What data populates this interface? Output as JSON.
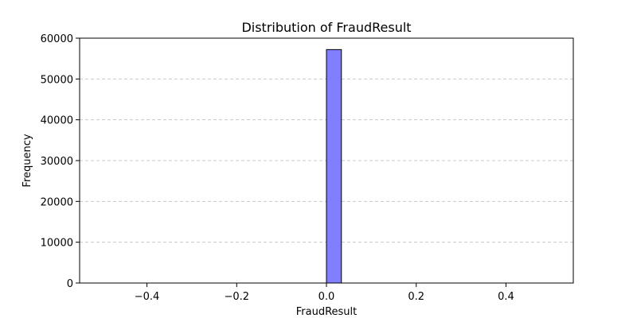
{
  "chart_data": {
    "type": "bar",
    "title": "Distribution of FraudResult",
    "xlabel": "FraudResult",
    "ylabel": "Frequency",
    "xlim": [
      -0.55,
      0.55
    ],
    "ylim": [
      0,
      60000
    ],
    "x_ticks": [
      -0.4,
      -0.2,
      0.0,
      0.2,
      0.4
    ],
    "x_tick_labels": [
      "−0.4",
      "−0.2",
      "0.0",
      "0.2",
      "0.4"
    ],
    "y_ticks": [
      0,
      10000,
      20000,
      30000,
      40000,
      50000,
      60000
    ],
    "y_tick_labels": [
      "0",
      "10000",
      "20000",
      "30000",
      "40000",
      "50000",
      "60000"
    ],
    "bins": {
      "start": -0.5,
      "end": 0.5,
      "count": 30
    },
    "bars": [
      {
        "x0": 0.0,
        "x1": 0.0333,
        "value": 57200
      }
    ],
    "grid": "y-dashed",
    "bar_color": "#7f7fff",
    "edge_color": "#000000"
  }
}
